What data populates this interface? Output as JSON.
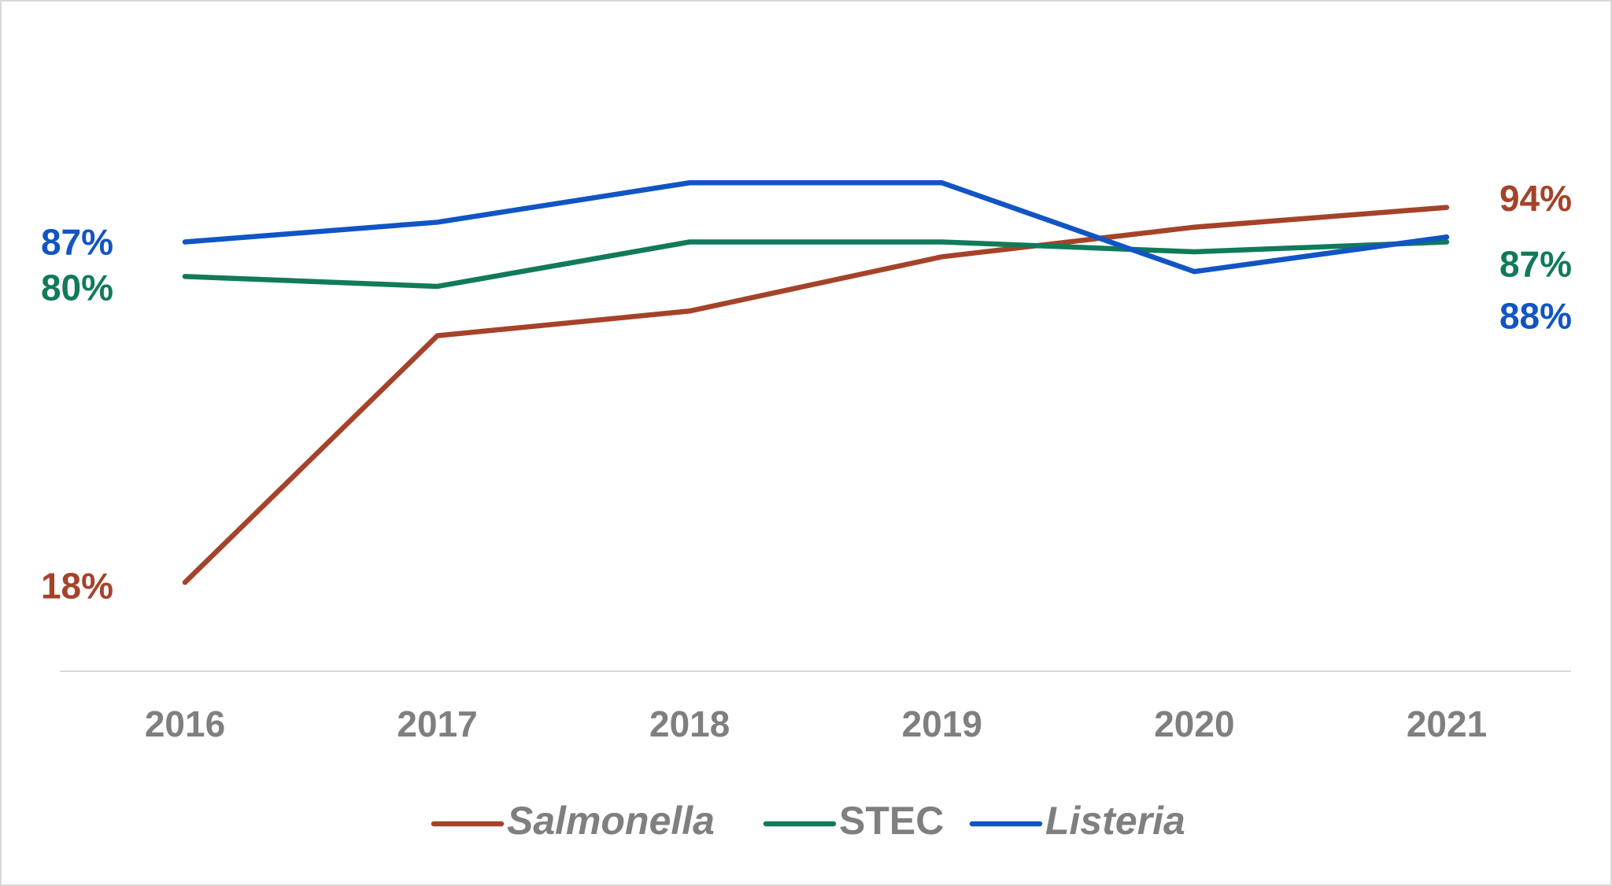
{
  "chart_data": {
    "type": "line",
    "categories": [
      "2016",
      "2017",
      "2018",
      "2019",
      "2020",
      "2021"
    ],
    "ylim": [
      0,
      100
    ],
    "series": [
      {
        "name": "Salmonella",
        "color": "#a5432a",
        "italic": true,
        "values": [
          18,
          68,
          73,
          84,
          90,
          94
        ],
        "value_labels": [
          "18%",
          null,
          null,
          null,
          null,
          "94%"
        ]
      },
      {
        "name": "STEC",
        "color": "#117a5a",
        "italic": false,
        "values": [
          80,
          78,
          87,
          87,
          85,
          87
        ],
        "value_labels": [
          "80%",
          null,
          null,
          null,
          null,
          "87%"
        ]
      },
      {
        "name": "Listeria",
        "color": "#1155c4",
        "italic": true,
        "values": [
          87,
          91,
          99,
          99,
          81,
          88
        ],
        "value_labels": [
          "87%",
          null,
          null,
          null,
          null,
          "88%"
        ]
      }
    ]
  }
}
